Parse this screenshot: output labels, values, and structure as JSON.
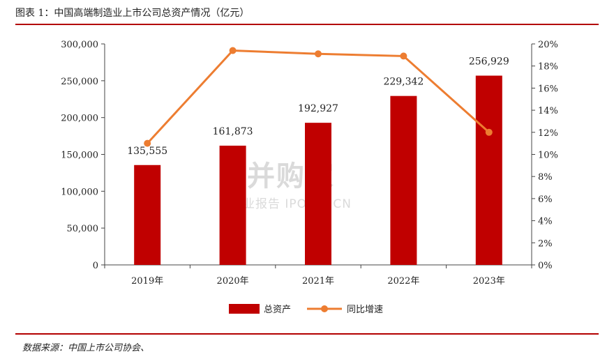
{
  "header": {
    "title": "图表 1：中国高端制造业上市公司总资产情况（亿元）"
  },
  "footer": {
    "source": "数据来源：中国上市公司协会、"
  },
  "watermark": {
    "brand": "并购家",
    "sub": "行业报告 IPOIPO.CN"
  },
  "chart_data": {
    "type": "bar",
    "categories": [
      "2019年",
      "2020年",
      "2021年",
      "2022年",
      "2023年"
    ],
    "series": [
      {
        "name": "总资产",
        "kind": "bar",
        "axis": "left",
        "color": "#c00000",
        "values": [
          135555,
          161873,
          192927,
          229342,
          256929
        ],
        "labels": [
          "135,555",
          "161,873",
          "192,927",
          "229,342",
          "256,929"
        ]
      },
      {
        "name": "同比增速",
        "kind": "line",
        "axis": "right",
        "color": "#ed7d31",
        "values": [
          0.11,
          0.194,
          0.191,
          0.189,
          0.12
        ]
      }
    ],
    "y_left": {
      "min": 0,
      "max": 300000,
      "step": 50000,
      "ticks": [
        "0",
        "50,000",
        "100,000",
        "150,000",
        "200,000",
        "250,000",
        "300,000"
      ]
    },
    "y_right": {
      "min": 0,
      "max": 0.2,
      "step": 0.02,
      "ticks": [
        "0%",
        "2%",
        "4%",
        "6%",
        "8%",
        "10%",
        "12%",
        "14%",
        "16%",
        "18%",
        "20%"
      ]
    },
    "grid": false,
    "legend": "bottom-center"
  }
}
